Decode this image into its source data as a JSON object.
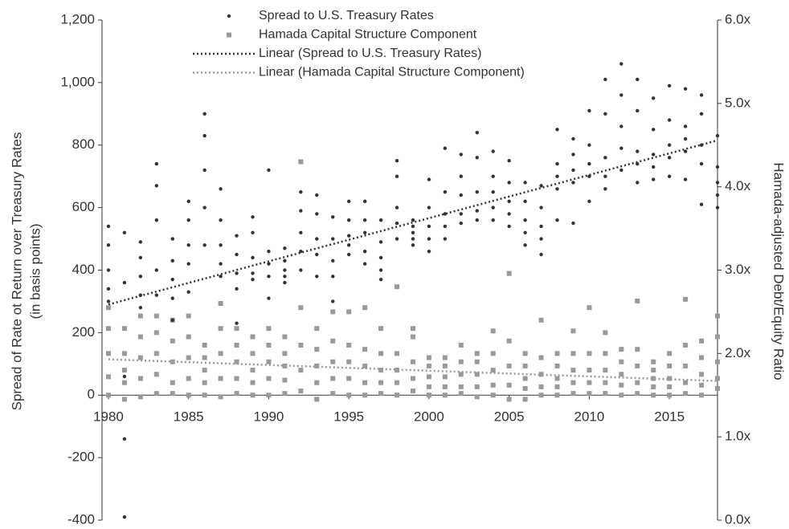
{
  "chart_data": {
    "type": "scatter",
    "ylabel": [
      "Spread of Rate ot Return over Treasury Rates",
      "(in basis points)"
    ],
    "y2label": "Hamada-adjusted Debt/Equity Ratio",
    "x": [
      1980,
      1981,
      1982,
      1983,
      1984,
      1985,
      1986,
      1987,
      1988,
      1989,
      1990,
      1991,
      1992,
      1993,
      1994,
      1995,
      1996,
      1997,
      1998,
      1999,
      2000,
      2001,
      2002,
      2003,
      2004,
      2005,
      2006,
      2007,
      2008,
      2009,
      2010,
      2011,
      2012,
      2013,
      2014,
      2015,
      2016,
      2017,
      2018
    ],
    "xlim": [
      1979.6,
      2018
    ],
    "xticks": [
      1980,
      1985,
      1990,
      1995,
      2000,
      2005,
      2010,
      2015
    ],
    "ylim": [
      -400,
      1200
    ],
    "yticks": [
      {
        "value": 1200,
        "label": "1,200"
      },
      {
        "value": 1000,
        "label": "1,000"
      },
      800,
      600,
      400,
      200,
      0,
      -200,
      -400
    ],
    "y2lim": [
      0,
      6
    ],
    "y2ticks": [
      {
        "value": 6,
        "label": "6.0x"
      },
      {
        "value": 5,
        "label": "5.0x"
      },
      {
        "value": 4,
        "label": "4.0x"
      },
      {
        "value": 3,
        "label": "3.0x"
      },
      {
        "value": 2,
        "label": "2.0x"
      },
      {
        "value": 1,
        "label": "1.0x"
      },
      {
        "value": 0,
        "label": "0.0x"
      }
    ],
    "legend": "top",
    "series": [
      {
        "name": "Spread to U.S. Treasury Rates",
        "color": "#333333",
        "marker": "dot",
        "values": [
          [
            540,
            480,
            400,
            340,
            300
          ],
          [
            520,
            360,
            60,
            -140,
            -390
          ],
          [
            490,
            440,
            380,
            320,
            280
          ],
          [
            740,
            670,
            560,
            400,
            320
          ],
          [
            500,
            430,
            370,
            310,
            240
          ],
          [
            620,
            560,
            480,
            420,
            330
          ],
          [
            900,
            830,
            720,
            600,
            480
          ],
          [
            660,
            560,
            480,
            420,
            380
          ],
          [
            510,
            450,
            390,
            340,
            230
          ],
          [
            570,
            520,
            440,
            390,
            370
          ],
          [
            720,
            460,
            420,
            380,
            310
          ],
          [
            470,
            430,
            400,
            380,
            360
          ],
          [
            650,
            590,
            520,
            460,
            400
          ],
          [
            640,
            580,
            500,
            450,
            380
          ],
          [
            570,
            500,
            430,
            380,
            300
          ],
          [
            620,
            560,
            510,
            480,
            450
          ],
          [
            620,
            560,
            520,
            460,
            420
          ],
          [
            560,
            490,
            440,
            400,
            370
          ],
          [
            750,
            700,
            600,
            550,
            500
          ],
          [
            560,
            540,
            520,
            500,
            480
          ],
          [
            690,
            600,
            540,
            500,
            460
          ],
          [
            790,
            650,
            580,
            540,
            500
          ],
          [
            770,
            700,
            640,
            580,
            550
          ],
          [
            840,
            760,
            650,
            590,
            560
          ],
          [
            780,
            700,
            650,
            600,
            560
          ],
          [
            750,
            680,
            620,
            580,
            540
          ],
          [
            680,
            620,
            560,
            520,
            480
          ],
          [
            670,
            600,
            540,
            500,
            450
          ],
          [
            850,
            740,
            700,
            660,
            560
          ],
          [
            820,
            770,
            720,
            680,
            550
          ],
          [
            910,
            800,
            740,
            700,
            620
          ],
          [
            1010,
            900,
            760,
            700,
            660
          ],
          [
            1060,
            960,
            860,
            790,
            720
          ],
          [
            1010,
            910,
            780,
            740,
            680
          ],
          [
            950,
            850,
            770,
            730,
            690
          ],
          [
            990,
            880,
            800,
            760,
            700
          ],
          [
            980,
            860,
            820,
            780,
            690
          ],
          [
            960,
            900,
            800,
            740,
            610
          ],
          [
            830,
            730,
            680,
            640,
            600
          ]
        ]
      },
      {
        "name": "Hamada Capital Structure Component",
        "color": "#999999",
        "marker": "square",
        "axis": "y2",
        "values": [
          [
            2.55,
            2.3,
            2.0,
            1.72,
            1.5
          ],
          [
            2.3,
            2.0,
            1.8,
            1.65,
            1.45
          ],
          [
            2.45,
            2.2,
            1.95,
            1.7,
            1.48
          ],
          [
            2.45,
            2.25,
            2.0,
            1.75,
            1.52
          ],
          [
            2.4,
            2.15,
            1.9,
            1.65,
            1.52
          ],
          [
            2.45,
            2.2,
            1.95,
            1.7,
            1.5
          ],
          [
            2.1,
            1.95,
            1.8,
            1.65,
            1.5
          ],
          [
            2.6,
            2.3,
            2.0,
            1.7,
            1.48
          ],
          [
            2.3,
            2.1,
            1.9,
            1.7,
            1.52
          ],
          [
            2.2,
            2.0,
            1.8,
            1.65,
            1.5
          ],
          [
            2.3,
            2.1,
            1.9,
            1.7,
            1.5
          ],
          [
            2.2,
            2.0,
            1.85,
            1.68,
            1.52
          ],
          [
            4.3,
            2.55,
            2.1,
            1.8,
            1.55
          ],
          [
            2.3,
            2.05,
            1.85,
            1.65,
            1.45
          ],
          [
            2.5,
            2.15,
            1.9,
            1.7,
            1.52
          ],
          [
            2.5,
            2.1,
            1.9,
            1.7,
            1.5
          ],
          [
            2.55,
            2.05,
            1.85,
            1.65,
            1.5
          ],
          [
            2.3,
            2.0,
            1.8,
            1.65,
            1.52
          ],
          [
            2.8,
            2.0,
            1.8,
            1.65,
            1.5
          ],
          [
            2.3,
            2.2,
            1.9,
            1.7,
            1.55
          ],
          [
            1.95,
            1.85,
            1.72,
            1.6,
            1.5
          ],
          [
            1.95,
            1.85,
            1.72,
            1.6,
            1.5
          ],
          [
            2.1,
            1.9,
            1.75,
            1.6,
            1.52
          ],
          [
            2.0,
            1.9,
            1.75,
            1.6,
            1.48
          ],
          [
            2.27,
            2.0,
            1.8,
            1.62,
            1.5
          ],
          [
            2.96,
            2.15,
            1.85,
            1.62,
            1.45
          ],
          [
            2.0,
            1.85,
            1.7,
            1.58,
            1.45
          ],
          [
            2.4,
            1.95,
            1.75,
            1.6,
            1.5
          ],
          [
            2.0,
            1.85,
            1.7,
            1.6,
            1.5
          ],
          [
            2.27,
            2.0,
            1.8,
            1.65,
            1.52
          ],
          [
            2.55,
            2.0,
            1.8,
            1.65,
            1.52
          ],
          [
            2.25,
            2.0,
            1.8,
            1.65,
            1.52
          ],
          [
            2.05,
            1.9,
            1.75,
            1.62,
            1.5
          ],
          [
            2.63,
            2.05,
            1.85,
            1.65,
            1.52
          ],
          [
            1.9,
            1.8,
            1.7,
            1.6,
            1.5
          ],
          [
            2.0,
            1.85,
            1.7,
            1.6,
            1.5
          ],
          [
            2.65,
            2.1,
            1.85,
            1.65,
            1.52
          ],
          [
            2.15,
            1.95,
            1.75,
            1.62,
            1.5
          ],
          [
            2.45,
            2.2,
            1.9,
            1.7,
            1.58
          ]
        ]
      },
      {
        "name": "Linear (Spread to U.S. Treasury Rates)",
        "color": "#333333",
        "marker": "line",
        "x": [
          1980,
          2018
        ],
        "values": [
          290,
          815
        ]
      },
      {
        "name": "Linear (Hamada Capital Structure Component)",
        "color": "#999999",
        "marker": "line",
        "axis": "y2",
        "x": [
          1980,
          2018
        ],
        "values": [
          1.93,
          1.67
        ]
      }
    ]
  }
}
